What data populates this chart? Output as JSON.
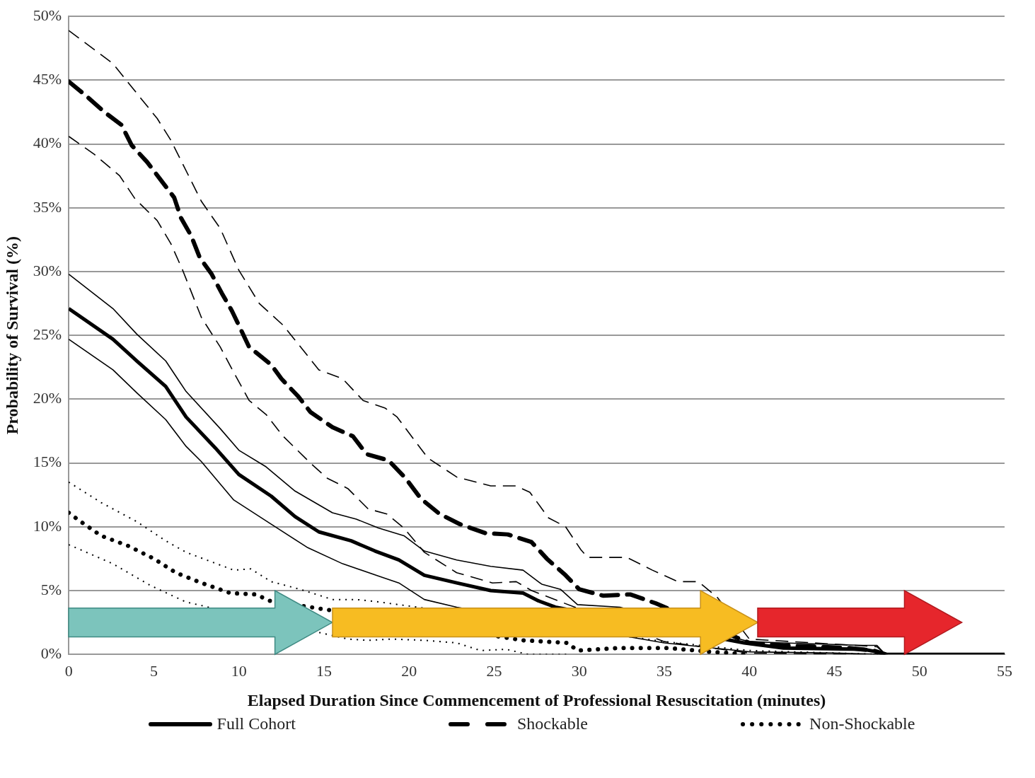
{
  "chart_data": {
    "type": "line",
    "xlabel": "Elapsed Duration Since Commencement of Professional Resuscitation (minutes)",
    "ylabel": "Probability of Survival (%)",
    "xlim": [
      0,
      55
    ],
    "xticks": [
      0,
      5,
      10,
      15,
      20,
      25,
      30,
      35,
      40,
      45,
      50,
      55
    ],
    "ylim": [
      0,
      50
    ],
    "yticks": [
      {
        "value": 0,
        "label": "0%"
      },
      {
        "value": 5,
        "label": "5%"
      },
      {
        "value": 10,
        "label": "10%"
      },
      {
        "value": 15,
        "label": "15%"
      },
      {
        "value": 20,
        "label": "20%"
      },
      {
        "value": 25,
        "label": "25%"
      },
      {
        "value": 30,
        "label": "30%"
      },
      {
        "value": 35,
        "label": "35%"
      },
      {
        "value": 40,
        "label": "40%"
      },
      {
        "value": 45,
        "label": "45%"
      },
      {
        "value": 50,
        "label": "50%"
      }
    ],
    "grid": "y",
    "legend": "bottom",
    "marker": "none",
    "series": [
      {
        "name": "Full Cohort",
        "color": "#000000",
        "line_style": "solid",
        "x": [
          0,
          2.6,
          4,
          5.7,
          6.9,
          8.6,
          10,
          11.9,
          13.3,
          14.7,
          16.6,
          18,
          19.4,
          20.9,
          22.8,
          24.8,
          26.7,
          27.6,
          28.6,
          39.7,
          42,
          46.7,
          47.5,
          48,
          55
        ],
        "values": [
          27.1,
          24.7,
          23,
          21,
          18.6,
          16.2,
          14.1,
          12.4,
          10.8,
          9.6,
          8.9,
          8.1,
          7.4,
          6.2,
          5.6,
          5,
          4.8,
          4.2,
          3.7,
          0.9,
          0.5,
          0.4,
          0.2,
          0,
          0
        ]
      },
      {
        "color": "#000000",
        "line_style": "solid",
        "x": [
          0,
          2.6,
          4,
          5.7,
          6.9,
          8.9,
          10,
          11.6,
          13.3,
          15.5,
          16.9,
          18.2,
          19.7,
          20.9,
          22.8,
          24.8,
          26.7,
          27.8,
          28.9,
          29.9,
          32.4,
          34.3,
          40,
          42,
          46.7,
          47.5,
          48
        ],
        "values": [
          29.8,
          27.1,
          25.1,
          23,
          20.6,
          17.7,
          16,
          14.7,
          12.8,
          11.1,
          10.6,
          9.9,
          9.3,
          8.1,
          7.4,
          6.9,
          6.6,
          5.5,
          5.1,
          3.9,
          3.7,
          null,
          1,
          0.9,
          0.7,
          0.7,
          0
        ]
      },
      {
        "color": "#000000",
        "line_style": "solid",
        "x": [
          0,
          2.6,
          4,
          5.7,
          6.9,
          7.8,
          9.7,
          11.9,
          14,
          16.1,
          18.3,
          19.4,
          20.9,
          22.8,
          30,
          35,
          40,
          45,
          48
        ],
        "values": [
          24.7,
          22.3,
          20.5,
          18.4,
          16.3,
          15.1,
          12.1,
          10.2,
          8.4,
          7.1,
          6.1,
          5.6,
          4.3,
          3.7,
          null,
          0.9,
          0.2,
          0.1,
          0
        ]
      },
      {
        "name": "Shockable",
        "color": "#000000",
        "line_style": "dashed",
        "x": [
          0,
          1,
          2.1,
          3.1,
          3.7,
          4.6,
          5.4,
          6.2,
          6.6,
          7.2,
          7.7,
          8.4,
          9,
          9.6,
          10.6,
          11.9,
          12.5,
          13.5,
          14.2,
          15.5,
          16.7,
          17.5,
          18.8,
          19.8,
          20.7,
          21.8,
          23,
          24.5,
          25.8,
          27.2,
          28.1,
          29.2,
          30,
          31.4,
          33,
          34.5,
          35.2,
          40,
          42,
          45.8,
          47.3,
          48
        ],
        "values": [
          44.9,
          43.8,
          42.5,
          41.5,
          39.9,
          38.6,
          37.2,
          35.8,
          34.2,
          32.8,
          31.1,
          29.8,
          28.3,
          26.9,
          24.1,
          22.7,
          21.6,
          20.2,
          19,
          17.8,
          17.1,
          15.7,
          15.2,
          13.8,
          12.2,
          11,
          10.2,
          9.5,
          9.4,
          8.8,
          7.5,
          6.2,
          5.1,
          4.6,
          4.7,
          4,
          null,
          0.9,
          0.7,
          0.5,
          0.3,
          0
        ]
      },
      {
        "color": "#000000",
        "line_style": "dashed",
        "x": [
          0,
          2.6,
          3.5,
          5.2,
          6,
          7.8,
          8.9,
          10,
          11.2,
          12.6,
          14.7,
          16.1,
          17.3,
          18.6,
          19.3,
          21.1,
          22.8,
          24.8,
          26.3,
          27.1,
          28.2,
          29.2,
          30.1,
          30.5,
          32.8,
          34.3,
          35.8,
          37,
          38.1,
          40,
          45,
          47.5,
          48
        ],
        "values": [
          48.9,
          46.3,
          44.8,
          42,
          40.3,
          35.5,
          33.4,
          30.1,
          27.5,
          25.8,
          22.3,
          21.6,
          19.9,
          19.3,
          18.6,
          15.4,
          13.9,
          13.2,
          13.2,
          12.7,
          10.7,
          10,
          8.2,
          7.6,
          7.6,
          6.6,
          5.7,
          5.7,
          4.5,
          1.2,
          0.8,
          0.6,
          0
        ]
      },
      {
        "color": "#000000",
        "line_style": "dashed",
        "x": [
          0,
          1.5,
          3,
          3.9,
          5.2,
          6,
          6.7,
          7.8,
          8.9,
          9.7,
          10.6,
          11.6,
          12.6,
          14.2,
          15.2,
          16.4,
          17.6,
          18.7,
          19.7,
          20.9,
          22.8,
          24.9,
          26.3,
          27.2,
          35,
          40,
          48
        ],
        "values": [
          40.6,
          39.2,
          37.5,
          35.7,
          34,
          32.2,
          30.1,
          26.4,
          24.1,
          22.1,
          19.9,
          18.8,
          17.1,
          15,
          13.8,
          13,
          11.4,
          11,
          9.9,
          8,
          6.4,
          5.6,
          5.7,
          5,
          1,
          0.1,
          0
        ]
      },
      {
        "name": "Non-Shockable",
        "color": "#000000",
        "line_style": "dotted",
        "x": [
          0,
          0.6,
          1.9,
          3.5,
          5,
          6.3,
          7.8,
          9.5,
          11,
          11.8,
          12.6,
          26.7,
          29.3,
          29.9,
          32.4,
          35.2,
          37.7,
          40
        ],
        "values": [
          11.1,
          10.5,
          9.3,
          8.5,
          7.5,
          6.4,
          5.6,
          4.8,
          4.7,
          4.2,
          null,
          1.1,
          0.9,
          0.3,
          0.5,
          0.5,
          0.2,
          0
        ]
      },
      {
        "color": "#000000",
        "line_style": "dotted",
        "x": [
          0,
          1.9,
          4,
          5.7,
          6.9,
          9.7,
          10.7,
          11.9,
          13.6,
          15.5,
          16.9,
          18.3,
          25,
          30,
          35,
          40,
          45,
          48
        ],
        "values": [
          13.5,
          11.9,
          10.4,
          8.9,
          8,
          6.6,
          6.7,
          5.7,
          5.1,
          4.3,
          4.3,
          4.1,
          null,
          null,
          1,
          0.3,
          0.1,
          0
        ]
      },
      {
        "color": "#000000",
        "line_style": "dotted",
        "x": [
          0,
          2.6,
          4.8,
          6.9,
          16.4,
          17.6,
          19,
          20.9,
          22.8,
          24.2,
          25.7,
          27,
          29.3
        ],
        "values": [
          8.6,
          7.1,
          5.4,
          4.1,
          1.2,
          1.1,
          1.2,
          1.1,
          0.9,
          0.3,
          0.4,
          0,
          0
        ]
      }
    ]
  }
}
